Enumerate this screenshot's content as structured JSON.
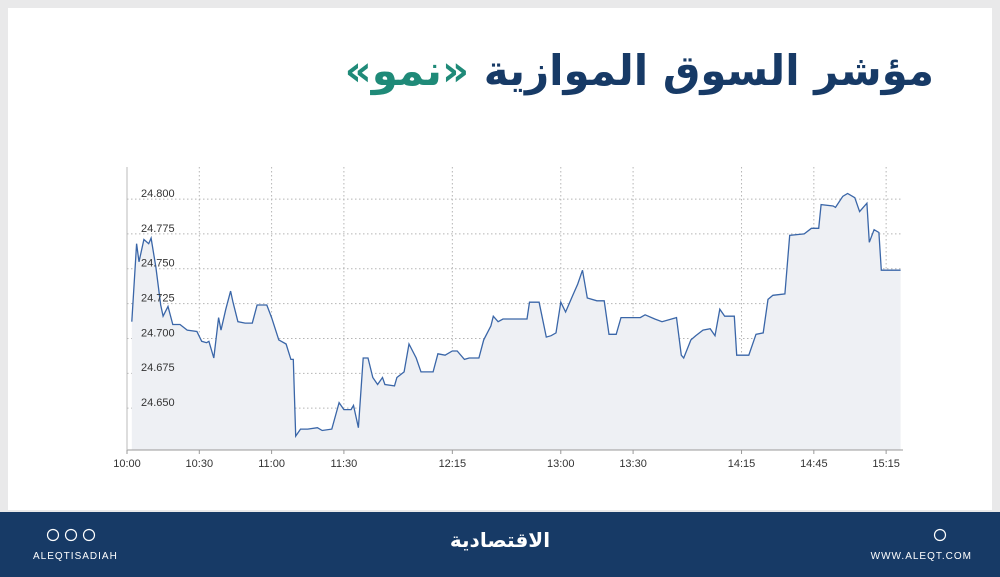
{
  "chart_data": {
    "type": "line",
    "title": "مؤشر السوق الموازية",
    "title_highlight": "«نمو»",
    "x": [
      2,
      4,
      5,
      7,
      9,
      10,
      12,
      14,
      15,
      17,
      19,
      22,
      25,
      29,
      31,
      33,
      34,
      36,
      38,
      39,
      41,
      43,
      44,
      46,
      49,
      52,
      54,
      58,
      60,
      63,
      66,
      68,
      69,
      70,
      72,
      75,
      79,
      81,
      85,
      88,
      90,
      93,
      94,
      96,
      98,
      100,
      102,
      104,
      106,
      107,
      111,
      112,
      115,
      117,
      120,
      122,
      127,
      129,
      132,
      135,
      137,
      140,
      142,
      146,
      148,
      151,
      152,
      154,
      156,
      166,
      167,
      171,
      174,
      176,
      178,
      180,
      182,
      185,
      187,
      189,
      191,
      195,
      198,
      200,
      203,
      205,
      213,
      215,
      219,
      222,
      228,
      230,
      231,
      234,
      236,
      239,
      242,
      244,
      246,
      248,
      252,
      253,
      258,
      261,
      264,
      266,
      268,
      273,
      275,
      281,
      284,
      287,
      288,
      293,
      294,
      297,
      299,
      302,
      304,
      307,
      308,
      310,
      312,
      313,
      321
    ],
    "series": [
      {
        "color": "#3a66a8",
        "fill": "#eef0f4",
        "values": [
          24.712,
          24.768,
          24.755,
          24.771,
          24.768,
          24.772,
          24.751,
          24.724,
          24.716,
          24.723,
          24.71,
          24.71,
          24.706,
          24.705,
          24.698,
          24.697,
          24.698,
          24.686,
          24.715,
          24.706,
          24.721,
          24.734,
          24.726,
          24.712,
          24.711,
          24.711,
          24.724,
          24.724,
          24.715,
          24.699,
          24.696,
          24.685,
          24.685,
          24.63,
          24.635,
          24.635,
          24.636,
          24.634,
          24.635,
          24.654,
          24.649,
          24.649,
          24.652,
          24.636,
          24.686,
          24.686,
          24.672,
          24.667,
          24.672,
          24.667,
          24.666,
          24.672,
          24.676,
          24.696,
          24.686,
          24.676,
          24.676,
          24.689,
          24.688,
          24.691,
          24.691,
          24.685,
          24.686,
          24.686,
          24.699,
          24.709,
          24.716,
          24.712,
          24.714,
          24.714,
          24.726,
          24.726,
          24.701,
          24.702,
          24.704,
          24.726,
          24.719,
          24.731,
          24.739,
          24.749,
          24.729,
          24.727,
          24.727,
          24.703,
          24.703,
          24.715,
          24.715,
          24.717,
          24.714,
          24.712,
          24.715,
          24.688,
          24.686,
          24.699,
          24.702,
          24.706,
          24.707,
          24.702,
          24.721,
          24.716,
          24.716,
          24.688,
          24.688,
          24.703,
          24.704,
          24.728,
          24.731,
          24.732,
          24.774,
          24.775,
          24.779,
          24.779,
          24.796,
          24.795,
          24.794,
          24.802,
          24.804,
          24.801,
          24.791,
          24.797,
          24.769,
          24.778,
          24.776,
          24.749,
          24.749
        ]
      }
    ],
    "xlim": [
      0,
      322
    ],
    "xticks": [
      {
        "value": 0,
        "label": "10:00"
      },
      {
        "value": 30,
        "label": "10:30"
      },
      {
        "value": 60,
        "label": "11:00"
      },
      {
        "value": 90,
        "label": "11:30"
      },
      {
        "value": 135,
        "label": "12:15"
      },
      {
        "value": 180,
        "label": "13:00"
      },
      {
        "value": 210,
        "label": "13:30"
      },
      {
        "value": 255,
        "label": "14:15"
      },
      {
        "value": 285,
        "label": "14:45"
      },
      {
        "value": 315,
        "label": "15:15"
      }
    ],
    "ylim": [
      24.62,
      24.823
    ],
    "yticks": [
      {
        "value": 24.65,
        "label": "24.650"
      },
      24.675,
      {
        "value": 24.7,
        "label": "24.700"
      },
      24.725,
      {
        "value": 24.75,
        "label": "24.750"
      },
      24.775,
      {
        "value": 24.8,
        "label": "24.800"
      }
    ],
    "grid": true
  },
  "footer": {
    "social": "ALEQTISADIAH",
    "logo": "الاقتصادية",
    "website": "WWW.ALEQT.COM"
  }
}
